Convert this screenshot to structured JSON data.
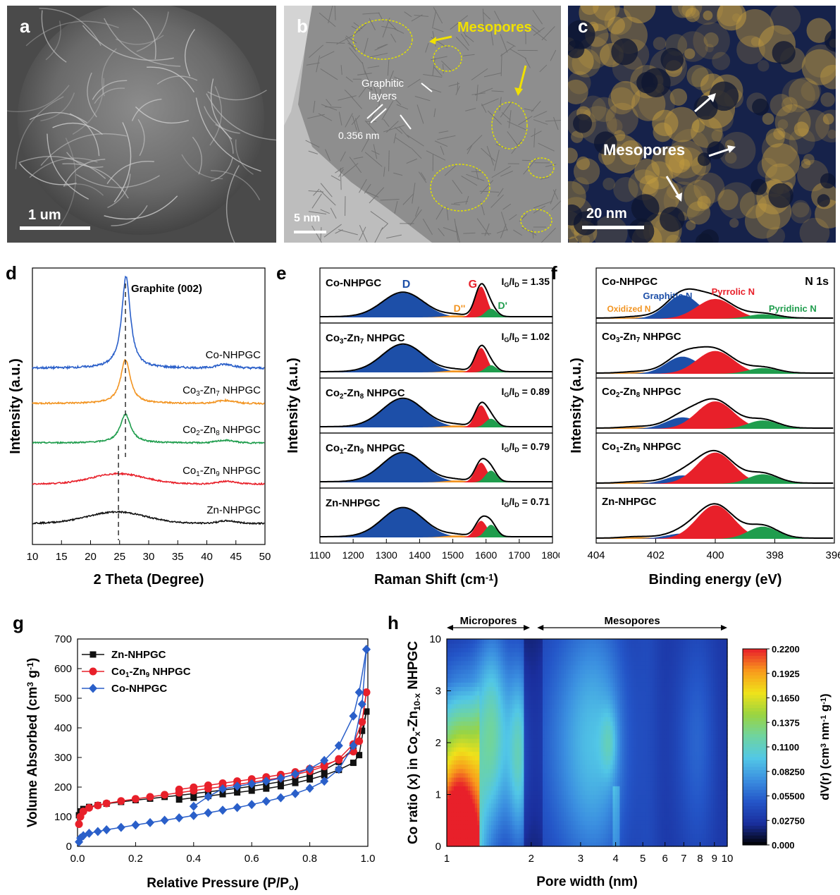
{
  "panels": {
    "a": {
      "label": "a",
      "scale_bar": "1 um"
    },
    "b": {
      "label": "b",
      "scale_bar": "5 nm",
      "annotation_mesopores": "Mesopores",
      "annotation_graphitic": "Graphitic\nlayers",
      "annotation_spacing": "0.356 nm"
    },
    "c": {
      "label": "c",
      "scale_bar": "20 nm",
      "annotation_mesopores": "Mesopores"
    },
    "d": {
      "label": "d"
    },
    "e": {
      "label": "e"
    },
    "f": {
      "label": "f"
    },
    "g": {
      "label": "g"
    },
    "h": {
      "label": "h"
    }
  },
  "chart_data": [
    {
      "id": "d",
      "type": "line",
      "xlabel": "2 Theta (Degree)",
      "ylabel": "Intensity (a.u.)",
      "xlim": [
        10,
        50
      ],
      "xticks": [
        10,
        15,
        20,
        25,
        30,
        35,
        40,
        45,
        50
      ],
      "annotation": "Graphite (002)",
      "dashed_lines": [
        26.0,
        24.8
      ],
      "series": [
        {
          "name": "Co-NHPGC",
          "color": "#2a5fc9",
          "peak_center": 26.1,
          "peak_width": 0.9,
          "peak_height": 100,
          "secondary_peak": 43.2
        },
        {
          "name": "Co3-Zn7 NHPGC",
          "color": "#f29421",
          "peak_center": 26.0,
          "peak_width": 1.0,
          "peak_height": 62,
          "secondary_peak": 43.2
        },
        {
          "name": "Co2-Zn8 NHPGC",
          "color": "#1f9d4d",
          "peak_center": 26.0,
          "peak_width": 1.1,
          "peak_height": 46,
          "secondary_peak": 43.2
        },
        {
          "name": "Co1-Zn9 NHPGC",
          "color": "#e8202a",
          "peak_center": 24.8,
          "peak_width": 4.5,
          "peak_height": 16,
          "secondary_peak": 43.5
        },
        {
          "name": "Zn-NHPGC",
          "color": "#111111",
          "peak_center": 24.5,
          "peak_width": 5.0,
          "peak_height": 18,
          "secondary_peak": 43.5
        }
      ]
    },
    {
      "id": "e",
      "type": "area",
      "xlabel": "Raman Shift (cm⁻¹)",
      "ylabel": "Intensity (a.u.)",
      "xlim": [
        1100,
        1800
      ],
      "xticks": [
        1100,
        1200,
        1300,
        1400,
        1500,
        1600,
        1700,
        1800
      ],
      "band_labels": {
        "D": "D",
        "G": "G",
        "D2": "D''",
        "D3": "D'"
      },
      "series": [
        {
          "name": "Co-NHPGC",
          "ratio": "1.35",
          "D": 0.62,
          "G": 0.78,
          "D3": 0.22,
          "D2": 0.05
        },
        {
          "name": "Co3-Zn7 NHPGC",
          "ratio": "1.02",
          "D": 0.7,
          "G": 0.62,
          "D3": 0.18,
          "D2": 0.05
        },
        {
          "name": "Co2-Zn8 NHPGC",
          "ratio": "0.89",
          "D": 0.72,
          "G": 0.56,
          "D3": 0.22,
          "D2": 0.05
        },
        {
          "name": "Co1-Zn9 NHPGC",
          "ratio": "0.79",
          "D": 0.74,
          "G": 0.5,
          "D3": 0.3,
          "D2": 0.05
        },
        {
          "name": "Zn-NHPGC",
          "ratio": "0.71",
          "D": 0.74,
          "G": 0.42,
          "D3": 0.32,
          "D2": 0.05
        }
      ]
    },
    {
      "id": "f",
      "type": "area",
      "xlabel": "Binding energy (eV)",
      "ylabel": "Intensity (a.u.)",
      "xlim": [
        404,
        396
      ],
      "xticks": [
        404,
        402,
        400,
        398,
        396
      ],
      "title": "N 1s",
      "components": [
        "Graphitic N",
        "Pyrrolic N",
        "Oxidized N",
        "Pyridinic N"
      ],
      "series": [
        {
          "name": "Co-NHPGC",
          "graphitic": 0.62,
          "pyrrolic": 0.52,
          "pyridinic": 0.12,
          "oxidized": 0.04
        },
        {
          "name": "Co3-Zn7 NHPGC",
          "graphitic": 0.45,
          "pyrrolic": 0.6,
          "pyridinic": 0.15,
          "oxidized": 0.04
        },
        {
          "name": "Co2-Zn8 NHPGC",
          "graphitic": 0.3,
          "pyrrolic": 0.72,
          "pyridinic": 0.22,
          "oxidized": 0.04
        },
        {
          "name": "Co1-Zn9 NHPGC",
          "graphitic": 0.22,
          "pyrrolic": 0.82,
          "pyridinic": 0.25,
          "oxidized": 0.04
        },
        {
          "name": "Zn-NHPGC",
          "graphitic": 0.14,
          "pyrrolic": 0.88,
          "pyridinic": 0.32,
          "oxidized": 0.04
        }
      ]
    },
    {
      "id": "g",
      "type": "scatter",
      "xlabel": "Relative Pressure (P/Po)",
      "ylabel": "Volume Absorbed (cm³ g⁻¹)",
      "xlim": [
        0,
        1.0
      ],
      "ylim": [
        0,
        700
      ],
      "xticks": [
        0.0,
        0.2,
        0.4,
        0.6,
        0.8,
        1.0
      ],
      "yticks": [
        0,
        100,
        200,
        300,
        400,
        500,
        600,
        700
      ],
      "series": [
        {
          "name": "Zn-NHPGC",
          "color": "#111111",
          "marker": "square",
          "adsorption": [
            [
              0.005,
              105
            ],
            [
              0.01,
              118
            ],
            [
              0.02,
              126
            ],
            [
              0.04,
              133
            ],
            [
              0.07,
              139
            ],
            [
              0.1,
              144
            ],
            [
              0.15,
              150
            ],
            [
              0.2,
              156
            ],
            [
              0.25,
              161
            ],
            [
              0.3,
              167
            ],
            [
              0.35,
              172
            ],
            [
              0.4,
              178
            ],
            [
              0.45,
              184
            ],
            [
              0.5,
              190
            ],
            [
              0.55,
              196
            ],
            [
              0.6,
              203
            ],
            [
              0.65,
              210
            ],
            [
              0.7,
              218
            ],
            [
              0.75,
              228
            ],
            [
              0.8,
              240
            ],
            [
              0.85,
              258
            ],
            [
              0.9,
              285
            ],
            [
              0.95,
              330
            ],
            [
              0.98,
              390
            ],
            [
              0.995,
              455
            ]
          ],
          "desorption": [
            [
              0.995,
              455
            ],
            [
              0.97,
              308
            ],
            [
              0.95,
              282
            ],
            [
              0.9,
              258
            ],
            [
              0.85,
              240
            ],
            [
              0.8,
              226
            ],
            [
              0.75,
              214
            ],
            [
              0.7,
              203
            ],
            [
              0.65,
              195
            ],
            [
              0.6,
              188
            ],
            [
              0.55,
              182
            ],
            [
              0.5,
              176
            ],
            [
              0.45,
              170
            ],
            [
              0.4,
              164
            ],
            [
              0.35,
              158
            ]
          ]
        },
        {
          "name": "Co1-Zn9 NHPGC",
          "color": "#e8202a",
          "marker": "circle",
          "adsorption": [
            [
              0.005,
              75
            ],
            [
              0.01,
              100
            ],
            [
              0.02,
              118
            ],
            [
              0.04,
              130
            ],
            [
              0.07,
              138
            ],
            [
              0.1,
              145
            ],
            [
              0.15,
              153
            ],
            [
              0.2,
              160
            ],
            [
              0.25,
              167
            ],
            [
              0.3,
              174
            ],
            [
              0.35,
              181
            ],
            [
              0.4,
              188
            ],
            [
              0.45,
              195
            ],
            [
              0.5,
              202
            ],
            [
              0.55,
              209
            ],
            [
              0.6,
              216
            ],
            [
              0.65,
              224
            ],
            [
              0.7,
              232
            ],
            [
              0.75,
              242
            ],
            [
              0.8,
              254
            ],
            [
              0.85,
              270
            ],
            [
              0.9,
              295
            ],
            [
              0.95,
              345
            ],
            [
              0.98,
              420
            ],
            [
              0.995,
              520
            ]
          ],
          "desorption": [
            [
              0.995,
              520
            ],
            [
              0.97,
              355
            ],
            [
              0.95,
              320
            ],
            [
              0.9,
              292
            ],
            [
              0.85,
              275
            ],
            [
              0.8,
              262
            ],
            [
              0.75,
              251
            ],
            [
              0.7,
              242
            ],
            [
              0.65,
              234
            ],
            [
              0.6,
              227
            ],
            [
              0.55,
              220
            ],
            [
              0.5,
              213
            ],
            [
              0.45,
              206
            ],
            [
              0.4,
              199
            ],
            [
              0.35,
              192
            ]
          ]
        },
        {
          "name": "Co-NHPGC",
          "color": "#2a5fc9",
          "marker": "diamond",
          "adsorption": [
            [
              0.005,
              15
            ],
            [
              0.01,
              28
            ],
            [
              0.02,
              36
            ],
            [
              0.04,
              44
            ],
            [
              0.07,
              50
            ],
            [
              0.1,
              56
            ],
            [
              0.15,
              64
            ],
            [
              0.2,
              72
            ],
            [
              0.25,
              80
            ],
            [
              0.3,
              88
            ],
            [
              0.35,
              96
            ],
            [
              0.4,
              104
            ],
            [
              0.45,
              113
            ],
            [
              0.5,
              122
            ],
            [
              0.55,
              131
            ],
            [
              0.6,
              141
            ],
            [
              0.65,
              152
            ],
            [
              0.7,
              164
            ],
            [
              0.75,
              178
            ],
            [
              0.8,
              196
            ],
            [
              0.85,
              220
            ],
            [
              0.9,
              260
            ],
            [
              0.95,
              340
            ],
            [
              0.98,
              480
            ],
            [
              0.995,
              665
            ]
          ],
          "desorption": [
            [
              0.995,
              665
            ],
            [
              0.97,
              520
            ],
            [
              0.95,
              440
            ],
            [
              0.9,
              340
            ],
            [
              0.85,
              290
            ],
            [
              0.8,
              262
            ],
            [
              0.75,
              244
            ],
            [
              0.7,
              230
            ],
            [
              0.65,
              220
            ],
            [
              0.6,
              211
            ],
            [
              0.55,
              203
            ],
            [
              0.5,
              194
            ],
            [
              0.45,
              168
            ],
            [
              0.4,
              135
            ]
          ]
        }
      ]
    },
    {
      "id": "h",
      "type": "heatmap",
      "xlabel": "Pore width (nm)",
      "ylabel": "Co ratio (x) in Cox-Zn10-x NHPGC",
      "xscale": "log",
      "xlim": [
        1,
        10
      ],
      "xticks": [
        1,
        2,
        3,
        4,
        5,
        6,
        7,
        8,
        9,
        10
      ],
      "y_categories": [
        "0",
        "1",
        "2",
        "3",
        "10"
      ],
      "region_labels": [
        "Micropores",
        "Mesopores"
      ],
      "colorbar": {
        "label": "dV(r) (cm³ nm⁻¹ g⁻¹)",
        "ticks": [
          "0.2200",
          "0.1925",
          "0.1650",
          "0.1375",
          "0.1100",
          "0.08250",
          "0.05500",
          "0.02750",
          "0.000"
        ],
        "colors": [
          "#000000",
          "#1a2f9e",
          "#2456c8",
          "#3b8fe0",
          "#52c7e6",
          "#6fd4a0",
          "#9ad441",
          "#f0e21a",
          "#f89a1c",
          "#e8202a"
        ]
      }
    }
  ]
}
